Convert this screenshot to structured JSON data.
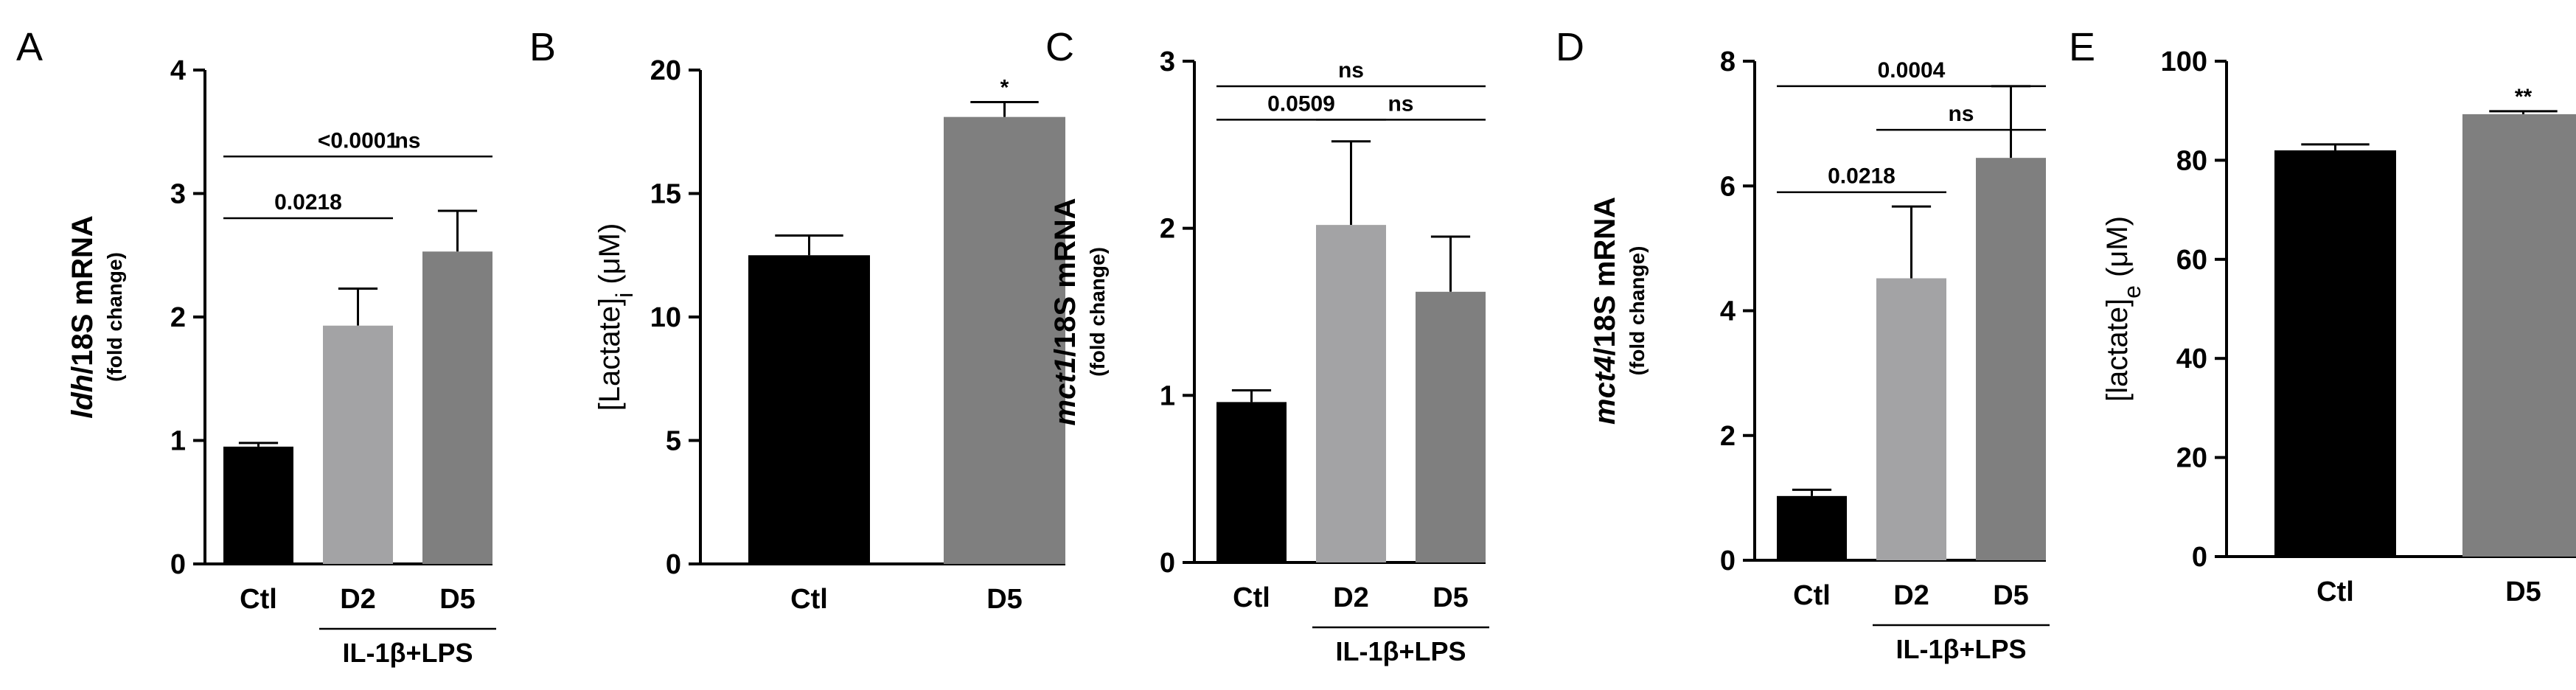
{
  "panels": [
    {
      "letter": "A",
      "ylabel_main_italic": "ldh",
      "ylabel_main": "/18S mRNA",
      "ylabel_sub": "(fold change)",
      "categories": [
        "Ctl",
        "D2",
        "D5"
      ],
      "group_label": "IL-1β+LPS",
      "group_span": [
        1,
        2
      ],
      "ylim": [
        0,
        4
      ],
      "yticks": [
        0,
        1,
        2,
        3,
        4
      ],
      "significance": [
        {
          "from": 0,
          "to": 1,
          "label": "0.0218",
          "y": 2.8
        },
        {
          "from": 1,
          "to": 2,
          "label": "ns",
          "y": 3.3
        },
        {
          "from": 0,
          "to": 2,
          "label": "<0.0001",
          "y": 3.3
        }
      ]
    },
    {
      "letter": "B",
      "ylabel_main": "[Lactate]",
      "ylabel_subscript": "i",
      "ylabel_unit": "(μM)",
      "categories": [
        "Ctl",
        "D5"
      ],
      "ylim": [
        0,
        20
      ],
      "yticks": [
        0,
        5,
        10,
        15,
        20
      ],
      "significance": [
        {
          "over": 1,
          "label": "*"
        }
      ]
    },
    {
      "letter": "C",
      "ylabel_main_italic": "mct1",
      "ylabel_main": "/18S mRNA",
      "ylabel_sub": "(fold change)",
      "categories": [
        "Ctl",
        "D2",
        "D5"
      ],
      "group_label": "IL-1β+LPS",
      "group_span": [
        1,
        2
      ],
      "ylim": [
        0,
        3
      ],
      "yticks": [
        0,
        1,
        2,
        3
      ],
      "significance": [
        {
          "from": 0,
          "to": 1,
          "label": "0.0509",
          "y": 2.65
        },
        {
          "from": 1,
          "to": 2,
          "label": "ns",
          "y": 2.65
        },
        {
          "from": 0,
          "to": 2,
          "label": "ns",
          "y": 2.85
        }
      ]
    },
    {
      "letter": "D",
      "ylabel_main_italic": "mct4",
      "ylabel_main": "/18S mRNA",
      "ylabel_sub": "(fold change)",
      "categories": [
        "Ctl",
        "D2",
        "D5"
      ],
      "group_label": "IL-1β+LPS",
      "group_span": [
        1,
        2
      ],
      "ylim": [
        0,
        8
      ],
      "yticks": [
        0,
        2,
        4,
        6,
        8
      ],
      "significance": [
        {
          "from": 0,
          "to": 1,
          "label": "0.0218",
          "y": 5.9
        },
        {
          "from": 1,
          "to": 2,
          "label": "ns",
          "y": 6.9
        },
        {
          "from": 0,
          "to": 2,
          "label": "0.0004",
          "y": 7.6
        }
      ]
    },
    {
      "letter": "E",
      "ylabel_main": "[lactate]",
      "ylabel_subscript": "e",
      "ylabel_unit": "(μM)",
      "categories": [
        "Ctl",
        "D5"
      ],
      "ylim": [
        0,
        100
      ],
      "yticks": [
        0,
        20,
        40,
        60,
        80,
        100
      ],
      "significance": [
        {
          "over": 1,
          "label": "**"
        }
      ]
    }
  ],
  "chart_data": [
    {
      "type": "bar",
      "categories": [
        "Ctl",
        "D2",
        "D5"
      ],
      "values": [
        0.95,
        1.93,
        2.53
      ],
      "errors": [
        0.03,
        0.3,
        0.33
      ],
      "colors": [
        "#000000",
        "#a3a3a5",
        "#7f7f7f"
      ],
      "ylim": [
        0,
        4
      ]
    },
    {
      "type": "bar",
      "categories": [
        "Ctl",
        "D5"
      ],
      "values": [
        12.5,
        18.1
      ],
      "errors": [
        0.8,
        0.6
      ],
      "colors": [
        "#000000",
        "#7f7f7f"
      ],
      "ylim": [
        0,
        20
      ]
    },
    {
      "type": "bar",
      "categories": [
        "Ctl",
        "D2",
        "D5"
      ],
      "values": [
        0.96,
        2.02,
        1.62
      ],
      "errors": [
        0.07,
        0.5,
        0.33
      ],
      "colors": [
        "#000000",
        "#a3a3a5",
        "#7f7f7f"
      ],
      "ylim": [
        0,
        3
      ]
    },
    {
      "type": "bar",
      "categories": [
        "Ctl",
        "D2",
        "D5"
      ],
      "values": [
        1.03,
        4.52,
        6.45
      ],
      "errors": [
        0.1,
        1.15,
        1.15
      ],
      "colors": [
        "#000000",
        "#a3a3a5",
        "#7f7f7f"
      ],
      "ylim": [
        0,
        8
      ]
    },
    {
      "type": "bar",
      "categories": [
        "Ctl",
        "D5"
      ],
      "values": [
        82.0,
        89.3
      ],
      "errors": [
        1.2,
        0.6
      ],
      "colors": [
        "#000000",
        "#7f7f7f"
      ],
      "ylim": [
        0,
        100
      ]
    }
  ]
}
